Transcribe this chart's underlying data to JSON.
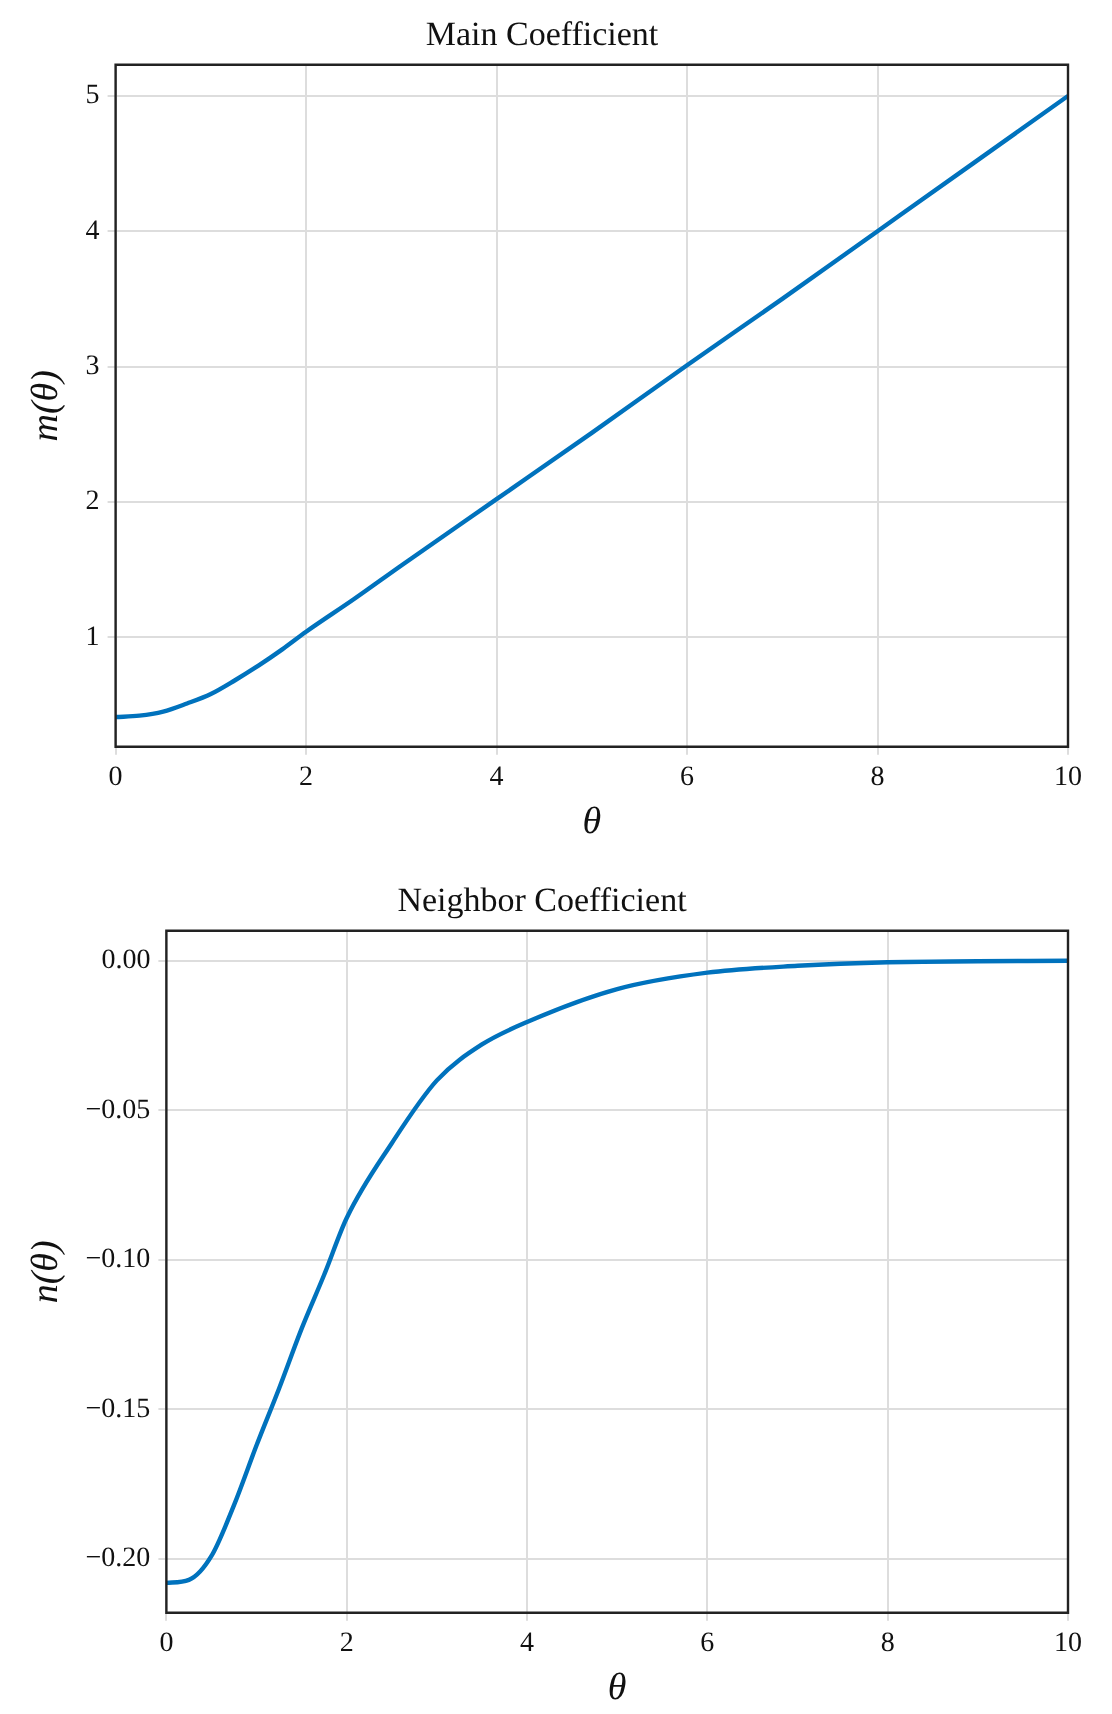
{
  "chart_data": [
    {
      "type": "line",
      "title": "Main Coefficient",
      "xlabel": "θ",
      "ylabel": "m(θ)",
      "xlim": [
        0,
        10
      ],
      "xticks": [
        0,
        2,
        4,
        6,
        8,
        10
      ],
      "ylim": [
        0.19,
        5.23
      ],
      "yticks": [
        1,
        2,
        3,
        4,
        5
      ],
      "grid": true,
      "legend": false,
      "marker": "none",
      "line_style": "solid",
      "series": [
        {
          "color": "#0072bd",
          "x": [
            0,
            0.25,
            0.5,
            0.75,
            1,
            1.25,
            1.5,
            1.75,
            2,
            2.5,
            3,
            4,
            5,
            6,
            7,
            8,
            9,
            10
          ],
          "values": [
            0.41,
            0.42,
            0.45,
            0.51,
            0.58,
            0.68,
            0.79,
            0.91,
            1.04,
            1.28,
            1.53,
            2.02,
            2.51,
            3.01,
            3.5,
            4.0,
            4.5,
            5.0
          ]
        }
      ]
    },
    {
      "type": "line",
      "title": "Neighbor Coefficient",
      "xlabel": "θ",
      "ylabel": "n(θ)",
      "xlim": [
        0,
        10
      ],
      "xticks": [
        0,
        2,
        4,
        6,
        8,
        10
      ],
      "ylim": [
        -0.218,
        0.01
      ],
      "yticks": [
        {
          "value": -0.2,
          "label": "−0.20"
        },
        {
          "value": -0.15,
          "label": "−0.15"
        },
        {
          "value": -0.1,
          "label": "−0.10"
        },
        {
          "value": -0.05,
          "label": "−0.05"
        },
        {
          "value": 0,
          "label": "0.00"
        }
      ],
      "grid": true,
      "legend": false,
      "marker": "none",
      "line_style": "solid",
      "series": [
        {
          "color": "#0072bd",
          "x": [
            0,
            0.25,
            0.5,
            0.75,
            1,
            1.25,
            1.5,
            1.75,
            2,
            2.5,
            3,
            3.5,
            4,
            5,
            6,
            7,
            8,
            9,
            10
          ],
          "values": [
            -0.208,
            -0.207,
            -0.199,
            -0.182,
            -0.162,
            -0.143,
            -0.123,
            -0.105,
            -0.086,
            -0.061,
            -0.04,
            -0.028,
            -0.0205,
            -0.0095,
            -0.004,
            -0.0017,
            -0.0005,
            -0.0002,
            0
          ]
        }
      ]
    }
  ]
}
